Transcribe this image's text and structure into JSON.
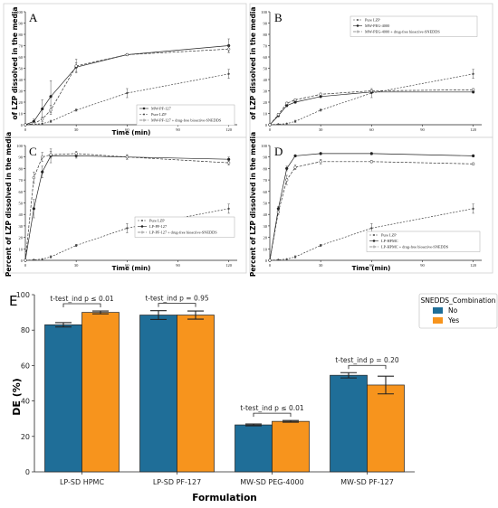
{
  "panels": [
    {
      "letter": "A",
      "ylabel": "of LZP dissolved in the media",
      "xlabel": "Time (min)",
      "legend": [
        "MW-PF-127",
        "Pure LZP",
        "MW-PF-127 + drug-free bioactive-SNEDDS"
      ]
    },
    {
      "letter": "B",
      "ylabel": "of LZP dissolved in the media",
      "xlabel": "",
      "legend": [
        "Pure LZP",
        "MW-PEG-4000",
        "MW-PEG-4000 + drug-free bioactive-SNEDDS"
      ]
    },
    {
      "letter": "C",
      "ylabel": "Percent of LZP dissolved in the media",
      "xlabel": "Time (min)",
      "legend": [
        "Pure LZP",
        "LP-PF-127",
        "LP-PF-127 + drug-free bioactive-SNEDDS"
      ]
    },
    {
      "letter": "D",
      "ylabel": "Percent of LZP dissolved in the media",
      "xlabel": "Time (min)",
      "legend": [
        "Pure LZP",
        "LP-HPMC",
        "LP-HPMC + drug-free bioactive-SNEDDS"
      ]
    }
  ],
  "panel_e": {
    "letter": "E",
    "ylabel": "DE (%)",
    "xlabel": "Formulation",
    "legend_title": "SNEDDS_Combination",
    "legend": [
      "No",
      "Yes"
    ],
    "annotations": [
      "t-test_ind p ≤ 0.01",
      "t-test_ind p = 0.95",
      "t-test_ind p ≤ 0.01",
      "t-test_ind p = 0.20"
    ]
  },
  "chart_data": [
    {
      "type": "line",
      "panel": "A",
      "x": [
        0,
        5,
        10,
        15,
        30,
        60,
        120
      ],
      "xticks": [
        0,
        30,
        60,
        90,
        120
      ],
      "yticks": [
        0,
        10,
        20,
        30,
        40,
        50,
        60,
        70,
        80,
        90,
        100
      ],
      "xlim": [
        0,
        125
      ],
      "ylim": [
        0,
        100
      ],
      "series": [
        {
          "name": "MW-PF-127",
          "values": [
            0,
            3,
            14,
            25,
            51,
            62,
            70
          ],
          "errors": [
            0,
            2,
            8,
            14,
            4,
            1,
            6
          ]
        },
        {
          "name": "Pure LZP",
          "values": [
            0,
            0.5,
            1,
            3,
            13,
            28,
            45
          ],
          "errors": [
            0,
            0,
            0,
            1,
            1,
            4,
            4
          ]
        },
        {
          "name": "MW-PF-127 + drug-free bioactive-SNEDDS",
          "values": [
            0,
            1,
            5,
            13,
            52,
            62,
            67
          ],
          "errors": [
            0,
            0,
            2,
            4,
            6,
            1,
            3
          ]
        }
      ]
    },
    {
      "type": "line",
      "panel": "B",
      "x": [
        0,
        5,
        10,
        15,
        30,
        60,
        120
      ],
      "xticks": [
        0,
        30,
        60,
        90,
        120
      ],
      "yticks": [
        0,
        10,
        20,
        30,
        40,
        50,
        60,
        70,
        80,
        90,
        100
      ],
      "xlim": [
        0,
        125
      ],
      "ylim": [
        0,
        100
      ],
      "series": [
        {
          "name": "Pure LZP",
          "values": [
            0,
            0.5,
            1,
            3,
            13,
            28,
            45
          ],
          "errors": [
            0,
            0,
            0,
            1,
            1,
            4,
            4
          ]
        },
        {
          "name": "MW-PEG-4000",
          "values": [
            0,
            8,
            17,
            20,
            25,
            29,
            29
          ],
          "errors": [
            0,
            1,
            1,
            1,
            1,
            1,
            1
          ]
        },
        {
          "name": "MW-PEG-4000 + drug-free bioactive-SNEDDS",
          "values": [
            0,
            9,
            19,
            22,
            27,
            30,
            31
          ],
          "errors": [
            0,
            1,
            1,
            1,
            1,
            1,
            1
          ]
        }
      ]
    },
    {
      "type": "line",
      "panel": "C",
      "x": [
        0,
        5,
        10,
        15,
        30,
        60,
        120
      ],
      "xticks": [
        0,
        30,
        60,
        90,
        120
      ],
      "yticks": [
        0,
        10,
        20,
        30,
        40,
        50,
        60,
        70,
        80,
        90,
        100
      ],
      "xlim": [
        0,
        125
      ],
      "ylim": [
        0,
        100
      ],
      "series": [
        {
          "name": "Pure LZP",
          "values": [
            0,
            0.5,
            1,
            3,
            13,
            28,
            45
          ],
          "errors": [
            0,
            0,
            0,
            1,
            1,
            4,
            4
          ]
        },
        {
          "name": "LP-PF-127",
          "values": [
            0,
            45,
            77,
            91,
            91,
            90,
            88
          ],
          "errors": [
            0,
            8,
            5,
            6,
            2,
            2,
            2
          ]
        },
        {
          "name": "LP-PF-127 + drug-free bioactive-SNEDDS",
          "values": [
            0,
            72,
            90,
            92,
            93,
            90,
            85
          ],
          "errors": [
            0,
            5,
            4,
            3,
            2,
            2,
            2
          ]
        }
      ]
    },
    {
      "type": "line",
      "panel": "D",
      "x": [
        0,
        5,
        10,
        15,
        30,
        60,
        120
      ],
      "xticks": [
        0,
        30,
        60,
        90,
        120
      ],
      "yticks": [
        0,
        10,
        20,
        30,
        40,
        50,
        60,
        70,
        80,
        90,
        100
      ],
      "xlim": [
        0,
        125
      ],
      "ylim": [
        0,
        100
      ],
      "series": [
        {
          "name": "Pure LZP",
          "values": [
            0,
            0.5,
            1,
            3,
            13,
            28,
            45
          ],
          "errors": [
            0,
            0,
            0,
            1,
            1,
            4,
            4
          ]
        },
        {
          "name": "LP-HPMC",
          "values": [
            0,
            45,
            80,
            91,
            93,
            93,
            91
          ],
          "errors": [
            0,
            2,
            2,
            1,
            1,
            1,
            1
          ]
        },
        {
          "name": "LP-HPMC + drug-free bioactive-SNEDDS",
          "values": [
            0,
            42,
            70,
            81,
            86,
            86,
            84
          ],
          "errors": [
            0,
            2,
            4,
            2,
            2,
            1,
            1
          ]
        }
      ]
    },
    {
      "type": "bar",
      "panel": "E",
      "categories": [
        "LP-SD HPMC",
        "LP-SD PF-127",
        "MW-SD PEG-4000",
        "MW-SD PF-127"
      ],
      "ylim": [
        0,
        100
      ],
      "yticks": [
        0,
        20,
        40,
        60,
        80,
        100
      ],
      "series": [
        {
          "name": "No",
          "color": "#1f6e98",
          "values": [
            83,
            88.5,
            26.5,
            54.5
          ],
          "errors": [
            1.2,
            2.5,
            0.5,
            1.5
          ]
        },
        {
          "name": "Yes",
          "color": "#f7941d",
          "values": [
            90,
            88.5,
            28.5,
            49
          ],
          "errors": [
            0.8,
            2.3,
            0.5,
            5
          ]
        }
      ]
    }
  ]
}
